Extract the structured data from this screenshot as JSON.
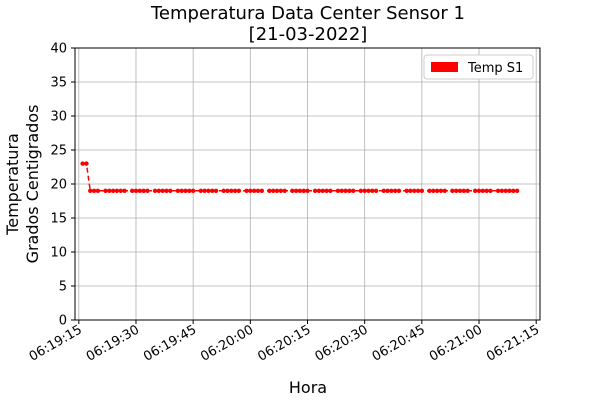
{
  "chart_data": {
    "type": "line",
    "title": [
      "Temperatura Data Center Sensor 1",
      "[21-03-2022]"
    ],
    "xlabel": "Hora",
    "ylabel": [
      "Temperatura",
      "Grados Centigrados"
    ],
    "x_tick_labels": [
      "06:19:15",
      "06:19:30",
      "06:19:45",
      "06:20:00",
      "06:20:15",
      "06:20:30",
      "06:20:45",
      "06:21:00",
      "06:21:15"
    ],
    "x_range": [
      "06:19:14",
      "06:21:16"
    ],
    "ylim": [
      0,
      40
    ],
    "y_ticks": [
      0,
      5,
      10,
      15,
      20,
      25,
      30,
      35,
      40
    ],
    "grid": true,
    "legend": {
      "placement": "top-right",
      "entries": [
        {
          "label": "Temp S1",
          "color": "#ff0000"
        }
      ]
    },
    "series": [
      {
        "name": "Temp S1",
        "color": "#ff0000",
        "line_style": "dashed",
        "marker": "circle",
        "points": [
          [
            "06:19:16",
            23
          ],
          [
            "06:19:17",
            23
          ],
          [
            "06:19:18",
            19
          ],
          [
            "06:19:19",
            19
          ],
          [
            "06:19:20",
            19
          ],
          [
            "06:19:22",
            19
          ],
          [
            "06:19:23",
            19
          ],
          [
            "06:19:24",
            19
          ],
          [
            "06:19:25",
            19
          ],
          [
            "06:19:26",
            19
          ],
          [
            "06:19:27",
            19
          ],
          [
            "06:19:29",
            19
          ],
          [
            "06:19:30",
            19
          ],
          [
            "06:19:31",
            19
          ],
          [
            "06:19:32",
            19
          ],
          [
            "06:19:33",
            19
          ],
          [
            "06:19:35",
            19
          ],
          [
            "06:19:36",
            19
          ],
          [
            "06:19:37",
            19
          ],
          [
            "06:19:38",
            19
          ],
          [
            "06:19:39",
            19
          ],
          [
            "06:19:41",
            19
          ],
          [
            "06:19:42",
            19
          ],
          [
            "06:19:43",
            19
          ],
          [
            "06:19:44",
            19
          ],
          [
            "06:19:45",
            19
          ],
          [
            "06:19:47",
            19
          ],
          [
            "06:19:48",
            19
          ],
          [
            "06:19:49",
            19
          ],
          [
            "06:19:50",
            19
          ],
          [
            "06:19:51",
            19
          ],
          [
            "06:19:53",
            19
          ],
          [
            "06:19:54",
            19
          ],
          [
            "06:19:55",
            19
          ],
          [
            "06:19:56",
            19
          ],
          [
            "06:19:57",
            19
          ],
          [
            "06:19:59",
            19
          ],
          [
            "06:20:00",
            19
          ],
          [
            "06:20:01",
            19
          ],
          [
            "06:20:02",
            19
          ],
          [
            "06:20:03",
            19
          ],
          [
            "06:20:05",
            19
          ],
          [
            "06:20:06",
            19
          ],
          [
            "06:20:07",
            19
          ],
          [
            "06:20:08",
            19
          ],
          [
            "06:20:09",
            19
          ],
          [
            "06:20:11",
            19
          ],
          [
            "06:20:12",
            19
          ],
          [
            "06:20:13",
            19
          ],
          [
            "06:20:14",
            19
          ],
          [
            "06:20:15",
            19
          ],
          [
            "06:20:17",
            19
          ],
          [
            "06:20:18",
            19
          ],
          [
            "06:20:19",
            19
          ],
          [
            "06:20:20",
            19
          ],
          [
            "06:20:21",
            19
          ],
          [
            "06:20:23",
            19
          ],
          [
            "06:20:24",
            19
          ],
          [
            "06:20:25",
            19
          ],
          [
            "06:20:26",
            19
          ],
          [
            "06:20:27",
            19
          ],
          [
            "06:20:29",
            19
          ],
          [
            "06:20:30",
            19
          ],
          [
            "06:20:31",
            19
          ],
          [
            "06:20:32",
            19
          ],
          [
            "06:20:33",
            19
          ],
          [
            "06:20:35",
            19
          ],
          [
            "06:20:36",
            19
          ],
          [
            "06:20:37",
            19
          ],
          [
            "06:20:38",
            19
          ],
          [
            "06:20:39",
            19
          ],
          [
            "06:20:41",
            19
          ],
          [
            "06:20:42",
            19
          ],
          [
            "06:20:43",
            19
          ],
          [
            "06:20:44",
            19
          ],
          [
            "06:20:45",
            19
          ],
          [
            "06:20:47",
            19
          ],
          [
            "06:20:48",
            19
          ],
          [
            "06:20:49",
            19
          ],
          [
            "06:20:50",
            19
          ],
          [
            "06:20:51",
            19
          ],
          [
            "06:20:53",
            19
          ],
          [
            "06:20:54",
            19
          ],
          [
            "06:20:55",
            19
          ],
          [
            "06:20:56",
            19
          ],
          [
            "06:20:57",
            19
          ],
          [
            "06:20:59",
            19
          ],
          [
            "06:21:00",
            19
          ],
          [
            "06:21:01",
            19
          ],
          [
            "06:21:02",
            19
          ],
          [
            "06:21:03",
            19
          ],
          [
            "06:21:05",
            19
          ],
          [
            "06:21:06",
            19
          ],
          [
            "06:21:07",
            19
          ],
          [
            "06:21:08",
            19
          ],
          [
            "06:21:09",
            19
          ],
          [
            "06:21:10",
            19
          ]
        ]
      }
    ]
  }
}
